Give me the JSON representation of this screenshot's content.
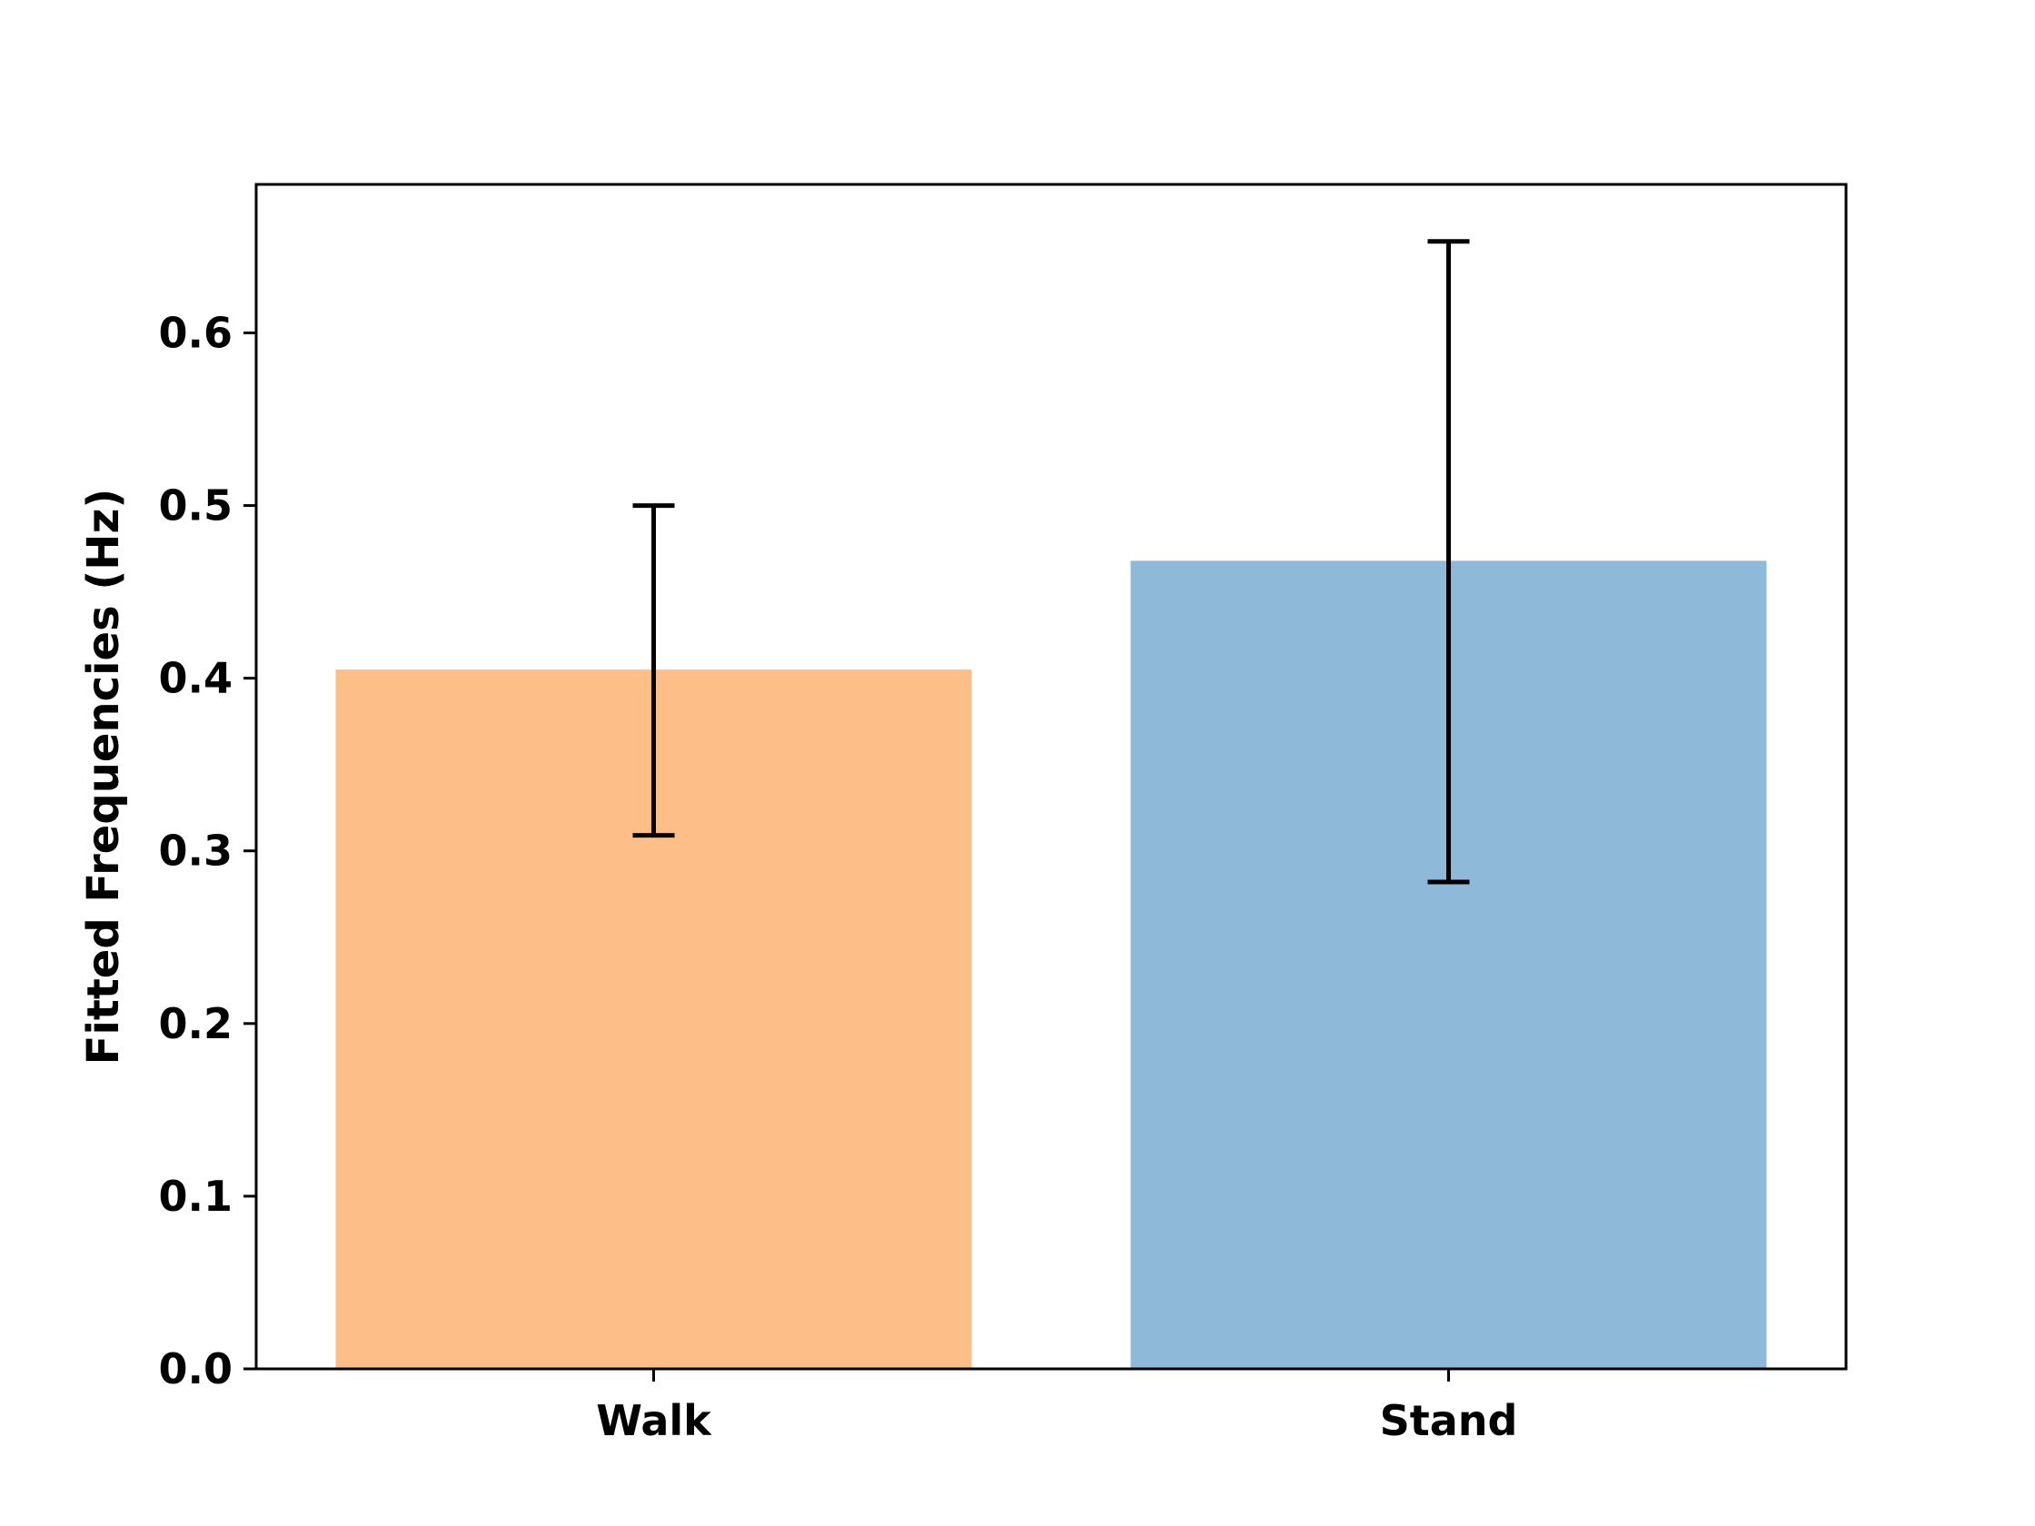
{
  "chart_data": {
    "type": "bar",
    "title": "",
    "xlabel": "",
    "ylabel": "Fitted Frequencies (Hz)",
    "categories": [
      "Walk",
      "Stand"
    ],
    "values": [
      0.405,
      0.468
    ],
    "error_low": [
      0.309,
      0.282
    ],
    "error_high": [
      0.5,
      0.653
    ],
    "colors": [
      "#fdbf87",
      "#8fb9d9"
    ],
    "ylim": [
      0.0,
      0.686
    ],
    "yticks": [
      "0.0",
      "0.1",
      "0.2",
      "0.3",
      "0.4",
      "0.5",
      "0.6"
    ],
    "grid": false,
    "legend": "none"
  }
}
